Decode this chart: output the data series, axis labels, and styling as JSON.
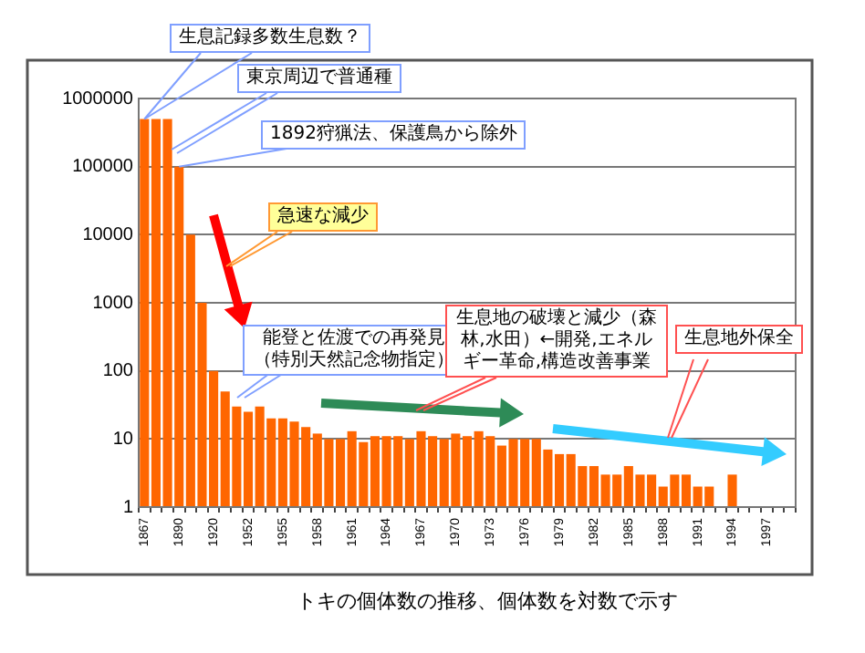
{
  "chart_data": {
    "type": "bar",
    "categories": [
      "1867",
      null,
      null,
      "1890",
      null,
      null,
      "1920",
      null,
      null,
      "1952",
      null,
      null,
      "1955",
      null,
      null,
      "1958",
      null,
      null,
      "1961",
      null,
      null,
      "1964",
      null,
      null,
      "1967",
      null,
      null,
      "1970",
      null,
      null,
      "1973",
      null,
      null,
      "1976",
      null,
      null,
      "1979",
      null,
      null,
      "1982",
      null,
      null,
      "1985",
      null,
      null,
      "1988",
      null,
      null,
      "1991",
      null,
      null,
      "1994",
      null,
      null,
      "1997",
      null,
      null
    ],
    "values": [
      500000,
      500000,
      500000,
      100000,
      10000,
      1000,
      100,
      50,
      30,
      25,
      30,
      20,
      20,
      18,
      15,
      12,
      10,
      10,
      13,
      9,
      11,
      11,
      11,
      10,
      13,
      11,
      10,
      12,
      11,
      13,
      11,
      8,
      10,
      10,
      10,
      7,
      6,
      6,
      4,
      4,
      3,
      3,
      4,
      3,
      3,
      2,
      3,
      3,
      2,
      2,
      null,
      3,
      null,
      null,
      null,
      null,
      null
    ],
    "color": "#ff6600",
    "log": true,
    "ylim": [
      1,
      1000000
    ],
    "yticks": [
      1,
      10,
      100,
      1000,
      10000,
      100000,
      1000000
    ],
    "grid": "y",
    "legend": false,
    "annotations": [
      {
        "text": "生息記録多数生息数？",
        "x": "1867",
        "y": 500000
      },
      "東京周辺で普通種",
      {
        "text": "1892狩猟法、保護鳥から除外",
        "x": "1890",
        "y": 100000
      },
      "急速な減少",
      "能登と佐渡での再発見（特別天然記念物指定）",
      "生息地の破壊と減少（森林,水田）←開発,エネルギー革命,構造改善事業",
      "生息地外保全",
      "トキの個体数の推移、個体数を対数で示す"
    ]
  }
}
